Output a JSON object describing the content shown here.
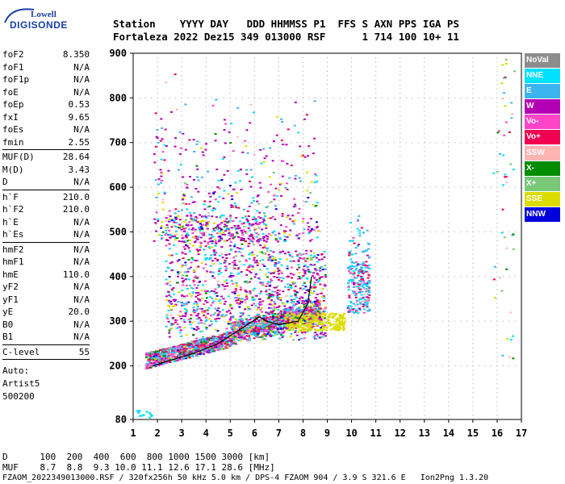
{
  "logo": {
    "line1": "Lowell",
    "line2": "DIGISONDE"
  },
  "header": {
    "labels": "Station    YYYY DAY   DDD HHMMSS P1  FFS S AXN PPS IGA PS",
    "values": "Fortaleza 2022 Dez15 349 013000 RSF      1 714 100 10+ 11"
  },
  "params": {
    "g1": [
      {
        "k": "foF2",
        "v": "8.350"
      },
      {
        "k": "foF1",
        "v": "N/A"
      },
      {
        "k": "foF1p",
        "v": "N/A"
      },
      {
        "k": "foE",
        "v": "N/A"
      },
      {
        "k": "foEp",
        "v": "0.53"
      },
      {
        "k": "fxI",
        "v": "9.65"
      },
      {
        "k": "foEs",
        "v": "N/A"
      },
      {
        "k": "fmin",
        "v": "2.55"
      }
    ],
    "g2": [
      {
        "k": "MUF(D)",
        "v": "28.64"
      },
      {
        "k": "M(D)",
        "v": "3.43"
      },
      {
        "k": "D",
        "v": "N/A"
      }
    ],
    "g3": [
      {
        "k": "h`F",
        "v": "210.0"
      },
      {
        "k": "h`F2",
        "v": "210.0"
      },
      {
        "k": "h`E",
        "v": "N/A"
      },
      {
        "k": "h`Es",
        "v": "N/A"
      }
    ],
    "g4": [
      {
        "k": "hmF2",
        "v": "N/A"
      },
      {
        "k": "hmF1",
        "v": "N/A"
      },
      {
        "k": "hmE",
        "v": "110.0"
      },
      {
        "k": "yF2",
        "v": "N/A"
      },
      {
        "k": "yF1",
        "v": "N/A"
      },
      {
        "k": "yE",
        "v": "20.0"
      },
      {
        "k": "B0",
        "v": "N/A"
      },
      {
        "k": "B1",
        "v": "N/A"
      }
    ],
    "g5": [
      {
        "k": "C-level",
        "v": "55"
      }
    ],
    "auto": [
      "Auto:",
      "Artist5",
      "500200"
    ]
  },
  "legend": [
    {
      "label": "NoVal",
      "color": "#8c8c8c"
    },
    {
      "label": "NNE",
      "color": "#00e0ff"
    },
    {
      "label": "E",
      "color": "#3cb4f0"
    },
    {
      "label": "W",
      "color": "#b400b4"
    },
    {
      "label": "Vo-",
      "color": "#ff44c8"
    },
    {
      "label": "Vo+",
      "color": "#f00050"
    },
    {
      "label": "SSW",
      "color": "#ffb4b4"
    },
    {
      "label": "X-",
      "color": "#008c00"
    },
    {
      "label": "X+",
      "color": "#78c878"
    },
    {
      "label": "SSE",
      "color": "#dcdc00"
    },
    {
      "label": "NNW",
      "color": "#0000dc"
    }
  ],
  "chart_data": {
    "type": "scatter",
    "x_ticks": [
      "1",
      "2",
      "3",
      "4",
      "5",
      "6",
      "7",
      "8",
      "9",
      "10",
      "11",
      "12",
      "13",
      "14",
      "15",
      "16",
      "17"
    ],
    "y_ticks": [
      "80",
      "200",
      "300",
      "400",
      "500",
      "600",
      "700",
      "800",
      "900"
    ],
    "xlim": [
      1,
      17
    ],
    "ylim": [
      80,
      900
    ],
    "x_unit": "MHz",
    "y_unit": "km",
    "trace": {
      "color": "#000000",
      "x": [
        1.8,
        2.5,
        3.5,
        4.5,
        5.5,
        6.2,
        6.5,
        7.0,
        7.8,
        8.2,
        8.35
      ],
      "y": [
        200,
        212,
        228,
        250,
        285,
        310,
        300,
        292,
        300,
        340,
        400
      ]
    }
  },
  "bottom": {
    "d_row": "D      100  200  400  600  800 1000 1500 3000 [km]",
    "muf_row": "MUF    8.7  8.8  9.3 10.0 11.1 12.6 17.1 28.6 [MHz]",
    "footer": "FZAOM_2022349013000.RSF / 320fx256h 50 kHz 5.0 km / DPS-4 FZAOM 904 / 3.9 S 321.6 E   Ion2Png 1.3.20"
  }
}
